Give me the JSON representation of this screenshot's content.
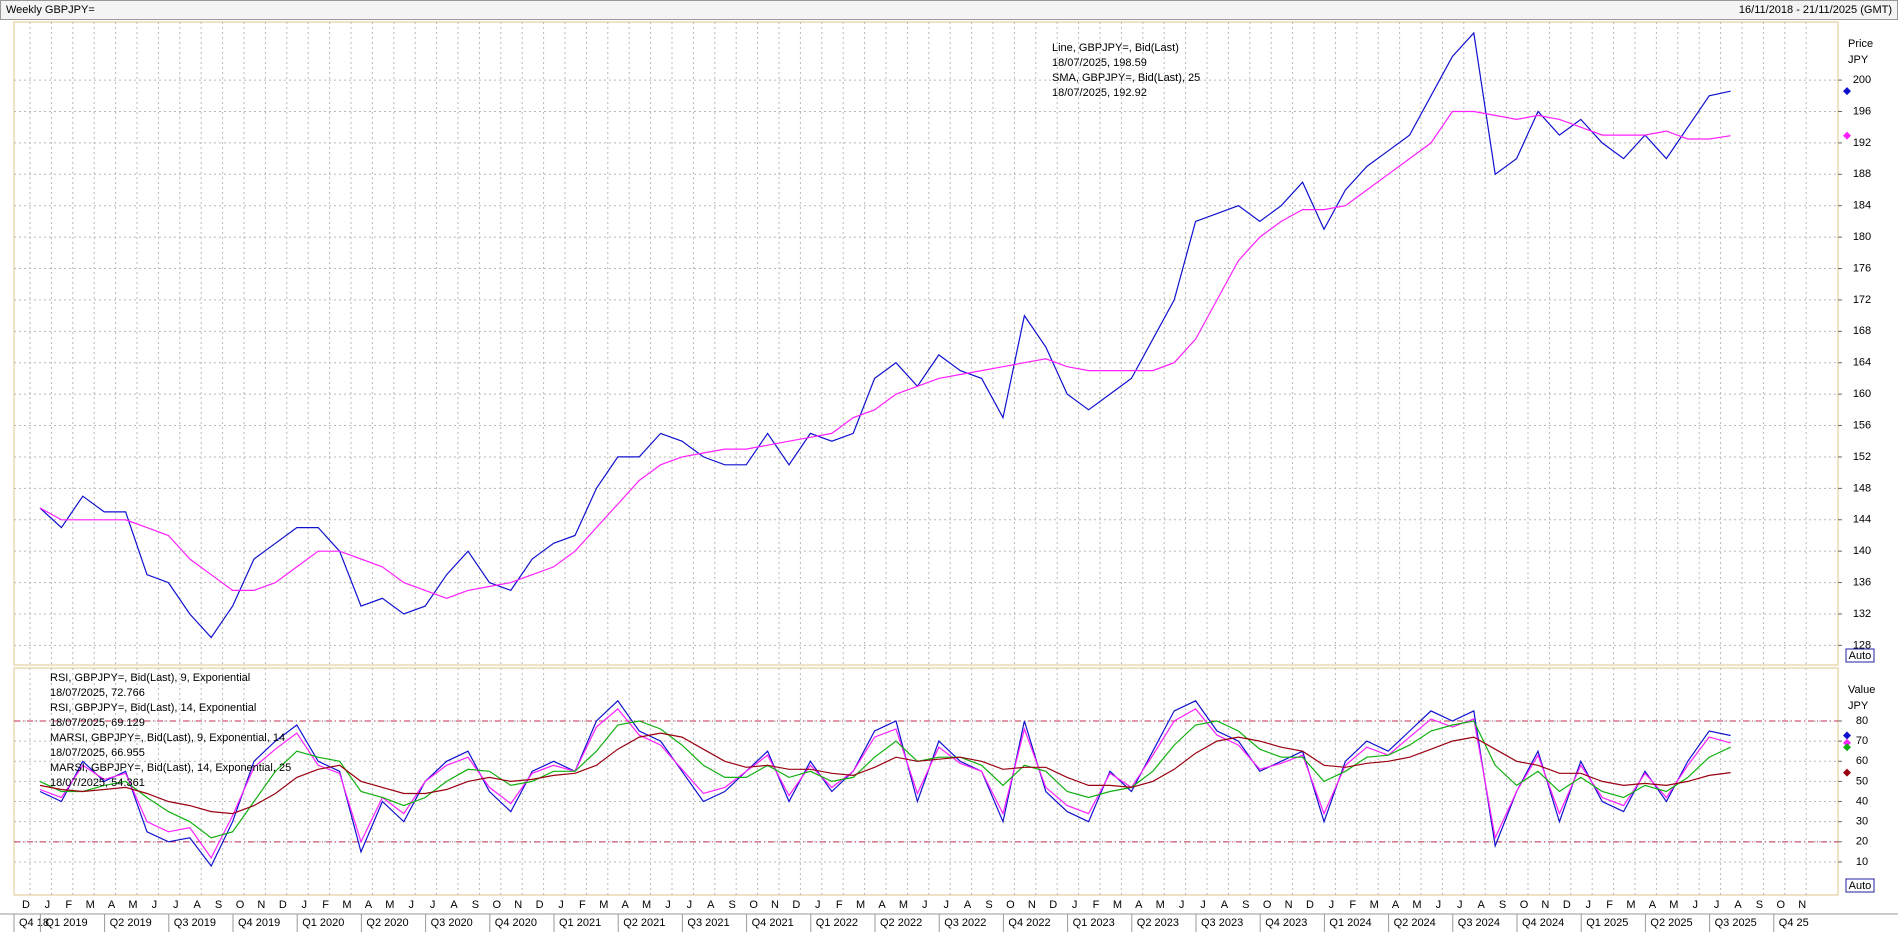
{
  "header": {
    "left": "Weekly GBPJPY=",
    "right": "16/11/2018 - 21/11/2025 (GMT)"
  },
  "x_axis": {
    "month_labels": [
      "D",
      "J",
      "F",
      "M",
      "A",
      "M",
      "J",
      "J",
      "A",
      "S",
      "O",
      "N",
      "D",
      "J",
      "F",
      "M",
      "A",
      "M",
      "J",
      "J",
      "A",
      "S",
      "O",
      "N",
      "D",
      "J",
      "F",
      "M",
      "A",
      "M",
      "J",
      "J",
      "A",
      "S",
      "O",
      "N",
      "D",
      "J",
      "F",
      "M",
      "A",
      "M",
      "J",
      "J",
      "A",
      "S",
      "O",
      "N",
      "D",
      "J",
      "F",
      "M",
      "A",
      "M",
      "J",
      "J",
      "A",
      "S",
      "O",
      "N",
      "D",
      "J",
      "F",
      "M",
      "A",
      "M",
      "J",
      "J",
      "A",
      "S",
      "O",
      "N",
      "D",
      "J",
      "F",
      "M",
      "A",
      "M",
      "J",
      "J",
      "A",
      "S",
      "O",
      "N"
    ],
    "quarter_labels": [
      "Q4 18",
      "Q1 2019",
      "Q2 2019",
      "Q3 2019",
      "Q4 2019",
      "Q1 2020",
      "Q2 2020",
      "Q3 2020",
      "Q4 2020",
      "Q1 2021",
      "Q2 2021",
      "Q3 2021",
      "Q4 2021",
      "Q1 2022",
      "Q2 2022",
      "Q3 2022",
      "Q4 2022",
      "Q1 2023",
      "Q2 2023",
      "Q3 2023",
      "Q4 2023",
      "Q1 2024",
      "Q2 2024",
      "Q3 2024",
      "Q4 2024",
      "Q1 2025",
      "Q2 2025",
      "Q3 2025",
      "Q4 25"
    ],
    "x": [
      "2018-12",
      "2019-01",
      "2019-02",
      "2019-03",
      "2019-04",
      "2019-05",
      "2019-06",
      "2019-07",
      "2019-08",
      "2019-09",
      "2019-10",
      "2019-11",
      "2019-12",
      "2020-01",
      "2020-02",
      "2020-03",
      "2020-04",
      "2020-05",
      "2020-06",
      "2020-07",
      "2020-08",
      "2020-09",
      "2020-10",
      "2020-11",
      "2020-12",
      "2021-01",
      "2021-02",
      "2021-03",
      "2021-04",
      "2021-05",
      "2021-06",
      "2021-07",
      "2021-08",
      "2021-09",
      "2021-10",
      "2021-11",
      "2021-12",
      "2022-01",
      "2022-02",
      "2022-03",
      "2022-04",
      "2022-05",
      "2022-06",
      "2022-07",
      "2022-08",
      "2022-09",
      "2022-10",
      "2022-11",
      "2022-12",
      "2023-01",
      "2023-02",
      "2023-03",
      "2023-04",
      "2023-05",
      "2023-06",
      "2023-07",
      "2023-08",
      "2023-09",
      "2023-10",
      "2023-11",
      "2023-12",
      "2024-01",
      "2024-02",
      "2024-03",
      "2024-04",
      "2024-05",
      "2024-06",
      "2024-07",
      "2024-08",
      "2024-09",
      "2024-10",
      "2024-11",
      "2024-12",
      "2025-01",
      "2025-02",
      "2025-03",
      "2025-04",
      "2025-05",
      "2025-06",
      "2025-07"
    ]
  },
  "chart_data": [
    {
      "type": "line",
      "axis_label": "Price",
      "unit_label": "JPY",
      "scale_button": "Auto",
      "ylim": [
        125.5,
        207.4
      ],
      "yticks": [
        128,
        132,
        136,
        140,
        144,
        148,
        152,
        156,
        160,
        164,
        168,
        172,
        176,
        180,
        184,
        188,
        192,
        196,
        200
      ],
      "grid": true,
      "series": [
        {
          "name": "Line, GBPJPY=, Bid(Last)",
          "last_label": "18/07/2025, 198.59",
          "color": "#1010d0",
          "values": [
            145.5,
            143,
            147,
            145,
            145,
            137,
            136,
            132,
            129,
            133,
            139,
            141,
            143,
            143,
            140,
            133,
            134,
            132,
            133,
            137,
            140,
            136,
            135,
            139,
            141,
            142,
            148,
            152,
            152,
            155,
            154,
            152,
            151,
            151,
            155,
            151,
            155,
            154,
            155,
            162,
            164,
            161,
            165,
            163,
            162,
            157,
            170,
            166,
            160,
            158,
            160,
            162,
            167,
            172,
            182,
            183,
            184,
            182,
            184,
            187,
            181,
            186,
            189,
            191,
            193,
            198,
            203,
            206,
            188,
            190,
            196,
            193,
            195,
            192,
            190,
            193,
            190,
            194,
            198,
            198.59
          ]
        },
        {
          "name": "SMA, GBPJPY=, Bid(Last),  25",
          "last_label": "18/07/2025, 192.92",
          "color": "#ff20ff",
          "values": [
            145.5,
            144,
            144,
            144,
            144,
            143,
            142,
            139,
            137,
            135,
            135,
            136,
            138,
            140,
            140,
            139,
            138,
            136,
            135,
            134,
            135,
            135.5,
            136,
            137,
            138,
            140,
            143,
            146,
            149,
            151,
            152,
            152.5,
            153,
            153,
            153.5,
            154,
            154.5,
            155,
            157,
            158,
            160,
            161,
            162,
            162.5,
            163,
            163.5,
            164,
            164.5,
            163.5,
            163,
            163,
            163,
            163,
            164,
            167,
            172,
            177,
            180,
            182,
            183.5,
            183.5,
            184,
            186,
            188,
            190,
            192,
            196,
            196,
            195.5,
            195,
            195.5,
            195,
            194,
            193,
            193,
            193,
            193.5,
            192.5,
            192.5,
            192.92
          ]
        }
      ]
    },
    {
      "type": "line",
      "axis_label": "Value",
      "unit_label": "JPY",
      "scale_button": "Auto",
      "ylim": [
        -6.4,
        106.3
      ],
      "yticks": [
        10,
        20,
        30,
        40,
        50,
        60,
        70,
        80
      ],
      "grid": true,
      "reference_lines": [
        20,
        80
      ],
      "series": [
        {
          "name": "RSI, GBPJPY=, Bid(Last),  9, Exponential",
          "last_label": "18/07/2025, 72.766",
          "color": "#1010d0",
          "values": [
            45,
            40,
            60,
            50,
            55,
            25,
            20,
            22,
            8,
            30,
            60,
            70,
            78,
            60,
            55,
            15,
            40,
            30,
            50,
            60,
            65,
            45,
            35,
            55,
            60,
            55,
            80,
            90,
            75,
            70,
            55,
            40,
            45,
            55,
            65,
            40,
            60,
            45,
            55,
            75,
            80,
            40,
            70,
            60,
            55,
            30,
            80,
            45,
            35,
            30,
            55,
            45,
            65,
            85,
            90,
            75,
            70,
            55,
            60,
            65,
            30,
            60,
            70,
            65,
            75,
            85,
            80,
            85,
            18,
            45,
            65,
            30,
            60,
            40,
            35,
            55,
            40,
            60,
            75,
            72.766
          ]
        },
        {
          "name": "RSI, GBPJPY=, Bid(Last),  14, Exponential",
          "last_label": "18/07/2025, 69.129",
          "color": "#ff20ff",
          "values": [
            46,
            42,
            58,
            51,
            54,
            30,
            25,
            27,
            12,
            33,
            57,
            66,
            74,
            58,
            54,
            20,
            42,
            34,
            50,
            58,
            62,
            47,
            39,
            54,
            58,
            55,
            77,
            86,
            73,
            68,
            56,
            44,
            47,
            55,
            63,
            43,
            58,
            47,
            55,
            72,
            76,
            44,
            67,
            59,
            55,
            34,
            76,
            47,
            38,
            34,
            54,
            47,
            63,
            80,
            86,
            73,
            68,
            56,
            59,
            63,
            34,
            58,
            67,
            63,
            72,
            81,
            77,
            81,
            22,
            45,
            63,
            34,
            58,
            42,
            38,
            54,
            42,
            58,
            72,
            69.129
          ]
        },
        {
          "name": "MARSI, GBPJPY=, Bid(Last),  9, Exponential, 14",
          "last_label": "18/07/2025, 66.955",
          "color": "#10b010",
          "values": [
            50,
            45,
            45,
            48,
            50,
            42,
            35,
            30,
            22,
            25,
            40,
            55,
            65,
            62,
            60,
            45,
            42,
            38,
            42,
            50,
            56,
            55,
            48,
            50,
            55,
            55,
            65,
            78,
            80,
            76,
            68,
            58,
            52,
            52,
            58,
            52,
            55,
            50,
            52,
            62,
            70,
            60,
            62,
            62,
            58,
            48,
            58,
            55,
            45,
            42,
            45,
            47,
            55,
            68,
            78,
            80,
            75,
            66,
            62,
            62,
            50,
            55,
            62,
            63,
            68,
            75,
            78,
            80,
            58,
            48,
            55,
            45,
            52,
            45,
            42,
            48,
            45,
            52,
            62,
            66.955
          ]
        },
        {
          "name": "MARSI, GBPJPY=, Bid(Last),  14, Exponential, 25",
          "last_label": "18/07/2025, 54.361",
          "color": "#990010",
          "values": [
            48,
            46,
            45,
            46,
            47,
            44,
            40,
            38,
            35,
            34,
            38,
            44,
            52,
            56,
            58,
            50,
            47,
            44,
            44,
            46,
            50,
            52,
            50,
            51,
            53,
            54,
            58,
            66,
            72,
            74,
            72,
            66,
            60,
            57,
            58,
            56,
            56,
            54,
            53,
            57,
            62,
            60,
            61,
            62,
            60,
            56,
            57,
            57,
            52,
            48,
            48,
            47,
            50,
            56,
            64,
            70,
            72,
            70,
            67,
            65,
            58,
            57,
            59,
            60,
            62,
            66,
            70,
            72,
            66,
            60,
            58,
            54,
            54,
            50,
            48,
            49,
            48,
            50,
            53,
            54.361
          ]
        }
      ]
    }
  ]
}
